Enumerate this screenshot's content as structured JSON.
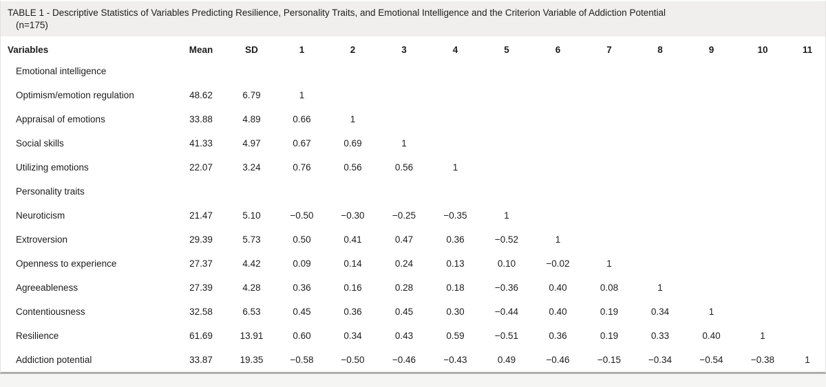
{
  "table": {
    "title": "TABLE 1 - Descriptive Statistics of Variables Predicting Resilience, Personality Traits, and Emotional Intelligence and the Criterion Variable of Addiction Potential",
    "sample_size": "(n=175)",
    "columns": [
      "Variables",
      "Mean",
      "SD",
      "1",
      "2",
      "3",
      "4",
      "5",
      "6",
      "7",
      "8",
      "9",
      "10",
      "11"
    ],
    "rows": [
      {
        "type": "section",
        "label": "Emotional intelligence",
        "cells": [
          "",
          "",
          "",
          "",
          "",
          "",
          "",
          "",
          "",
          "",
          "",
          "",
          ""
        ]
      },
      {
        "type": "data",
        "label": "Optimism/emotion regulation",
        "cells": [
          "48.62",
          "6.79",
          "1",
          "",
          "",
          "",
          "",
          "",
          "",
          "",
          "",
          "",
          ""
        ]
      },
      {
        "type": "data",
        "label": "Appraisal of emotions",
        "cells": [
          "33.88",
          "4.89",
          "0.66",
          "1",
          "",
          "",
          "",
          "",
          "",
          "",
          "",
          "",
          ""
        ]
      },
      {
        "type": "data",
        "label": "Social skills",
        "cells": [
          "41.33",
          "4.97",
          "0.67",
          "0.69",
          "1",
          "",
          "",
          "",
          "",
          "",
          "",
          "",
          ""
        ]
      },
      {
        "type": "data",
        "label": "Utilizing emotions",
        "cells": [
          "22.07",
          "3.24",
          "0.76",
          "0.56",
          "0.56",
          "1",
          "",
          "",
          "",
          "",
          "",
          "",
          ""
        ]
      },
      {
        "type": "section",
        "label": "Personality traits",
        "cells": [
          "",
          "",
          "",
          "",
          "",
          "",
          "",
          "",
          "",
          "",
          "",
          "",
          ""
        ]
      },
      {
        "type": "data",
        "label": "Neuroticism",
        "cells": [
          "21.47",
          "5.10",
          "−0.50",
          "−0.30",
          "−0.25",
          "−0.35",
          "1",
          "",
          "",
          "",
          "",
          "",
          ""
        ]
      },
      {
        "type": "data",
        "label": "Extroversion",
        "cells": [
          "29.39",
          "5.73",
          "0.50",
          "0.41",
          "0.47",
          "0.36",
          "−0.52",
          "1",
          "",
          "",
          "",
          "",
          ""
        ]
      },
      {
        "type": "data",
        "label": "Openness to experience",
        "cells": [
          "27.37",
          "4.42",
          "0.09",
          "0.14",
          "0.24",
          "0.13",
          "0.10",
          "−0.02",
          "1",
          "",
          "",
          "",
          ""
        ]
      },
      {
        "type": "data",
        "label": "Agreeableness",
        "cells": [
          "27.39",
          "4.28",
          "0.36",
          "0.16",
          "0.28",
          "0.18",
          "−0.36",
          "0.40",
          "0.08",
          "1",
          "",
          "",
          ""
        ]
      },
      {
        "type": "data",
        "label": "Contentiousness",
        "cells": [
          "32.58",
          "6.53",
          "0.45",
          "0.36",
          "0.45",
          "0.30",
          "−0.44",
          "0.40",
          "0.19",
          "0.34",
          "1",
          "",
          ""
        ]
      },
      {
        "type": "data",
        "label": "Resilience",
        "cells": [
          "61.69",
          "13.91",
          "0.60",
          "0.34",
          "0.43",
          "0.59",
          "−0.51",
          "0.36",
          "0.19",
          "0.33",
          "0.40",
          "1",
          ""
        ]
      },
      {
        "type": "data",
        "label": "Addiction potential",
        "cells": [
          "33.87",
          "19.35",
          "−0.58",
          "−0.50",
          "−0.46",
          "−0.43",
          "0.49",
          "−0.46",
          "−0.15",
          "−0.34",
          "−0.54",
          "−0.38",
          "1"
        ]
      }
    ],
    "colors": {
      "title_band_bg": "#f0efed",
      "body_bg": "#ffffff",
      "page_bg": "#f5f5f4",
      "bottom_rule": "#aeaeac",
      "text": "#1c1c1c"
    }
  }
}
